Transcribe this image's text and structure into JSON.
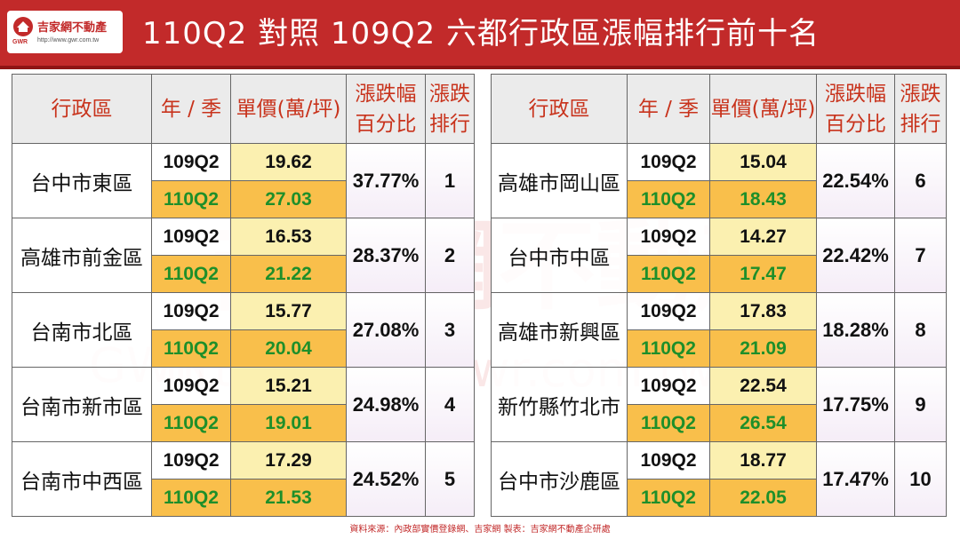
{
  "header": {
    "logo_name": "吉家網不動產",
    "logo_abbr": "GWR",
    "logo_url": "http://www.gwr.com.tw",
    "title": "110Q2 對照 109Q2  六都行政區漲幅排行前十名"
  },
  "watermark": {
    "cn": "吉家網不動產",
    "url": "http://www.gwr.com.tw",
    "gwr": "GWR"
  },
  "columns": {
    "district": "行政區",
    "quarter": "年 / 季",
    "price": "單價(萬/坪)",
    "pct_line1": "漲跌幅",
    "pct_line2": "百分比",
    "rank_line1": "漲跌",
    "rank_line2": "排行"
  },
  "left": [
    {
      "district": "台中市東區",
      "q_prev": "109Q2",
      "p_prev": "19.62",
      "q_cur": "110Q2",
      "p_cur": "27.03",
      "pct": "37.77%",
      "rank": "1"
    },
    {
      "district": "高雄市前金區",
      "q_prev": "109Q2",
      "p_prev": "16.53",
      "q_cur": "110Q2",
      "p_cur": "21.22",
      "pct": "28.37%",
      "rank": "2"
    },
    {
      "district": "台南市北區",
      "q_prev": "109Q2",
      "p_prev": "15.77",
      "q_cur": "110Q2",
      "p_cur": "20.04",
      "pct": "27.08%",
      "rank": "3"
    },
    {
      "district": "台南市新市區",
      "q_prev": "109Q2",
      "p_prev": "15.21",
      "q_cur": "110Q2",
      "p_cur": "19.01",
      "pct": "24.98%",
      "rank": "4"
    },
    {
      "district": "台南市中西區",
      "q_prev": "109Q2",
      "p_prev": "17.29",
      "q_cur": "110Q2",
      "p_cur": "21.53",
      "pct": "24.52%",
      "rank": "5"
    }
  ],
  "right": [
    {
      "district": "高雄市岡山區",
      "q_prev": "109Q2",
      "p_prev": "15.04",
      "q_cur": "110Q2",
      "p_cur": "18.43",
      "pct": "22.54%",
      "rank": "6"
    },
    {
      "district": "台中市中區",
      "q_prev": "109Q2",
      "p_prev": "14.27",
      "q_cur": "110Q2",
      "p_cur": "17.47",
      "pct": "22.42%",
      "rank": "7"
    },
    {
      "district": "高雄市新興區",
      "q_prev": "109Q2",
      "p_prev": "17.83",
      "q_cur": "110Q2",
      "p_cur": "21.09",
      "pct": "18.28%",
      "rank": "8"
    },
    {
      "district": "新竹縣竹北市",
      "q_prev": "109Q2",
      "p_prev": "22.54",
      "q_cur": "110Q2",
      "p_cur": "26.54",
      "pct": "17.75%",
      "rank": "9"
    },
    {
      "district": "台中市沙鹿區",
      "q_prev": "109Q2",
      "p_prev": "18.77",
      "q_cur": "110Q2",
      "p_cur": "22.05",
      "pct": "17.47%",
      "rank": "10"
    }
  ],
  "footer": {
    "source": "資料來源：內政部實價登錄網、吉家網  製表：吉家網不動產企研處"
  },
  "colors": {
    "header_bg": "#c22a2a",
    "header_text": "#c8331c",
    "new_row_bg": "#f9bf4b",
    "new_row_text": "#1e8f2a",
    "old_price_bg": "#fbf0b0"
  }
}
